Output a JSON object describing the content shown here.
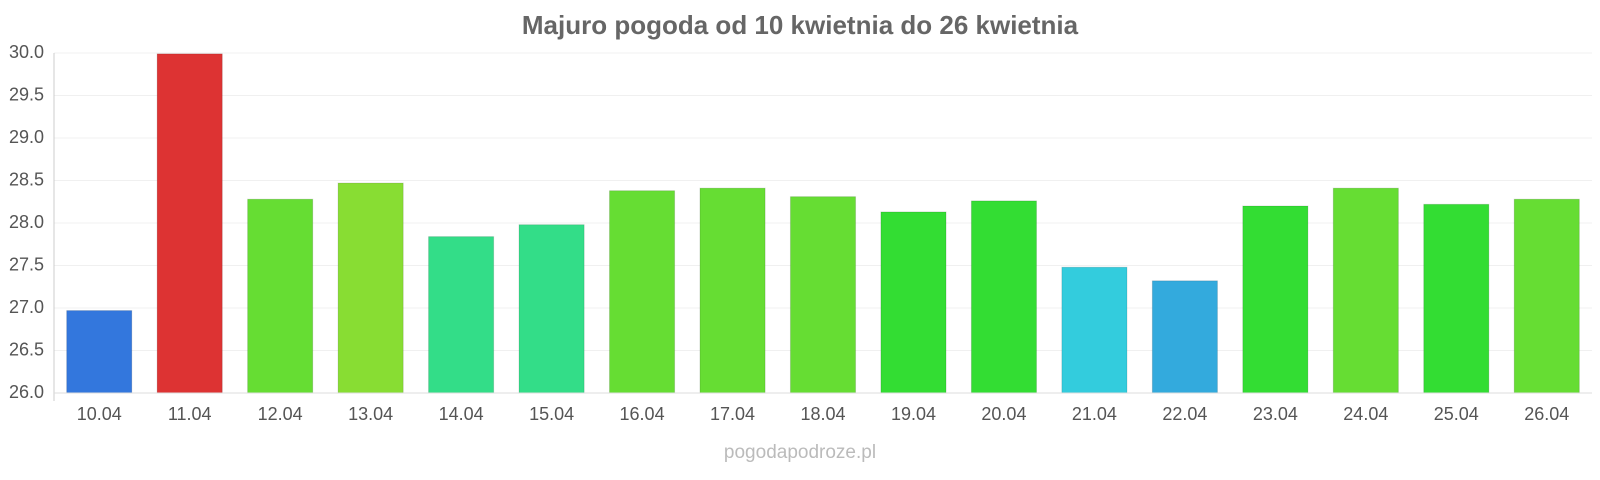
{
  "chart_data": {
    "type": "bar",
    "title": "Majuro pogoda od 10 kwietnia do 26 kwietnia",
    "categories": [
      "10.04",
      "11.04",
      "12.04",
      "13.04",
      "14.04",
      "15.04",
      "16.04",
      "17.04",
      "18.04",
      "19.04",
      "20.04",
      "21.04",
      "22.04",
      "23.04",
      "24.04",
      "25.04",
      "26.04"
    ],
    "values": [
      26.97,
      29.99,
      28.28,
      28.47,
      27.84,
      27.98,
      28.38,
      28.41,
      28.31,
      28.13,
      28.26,
      27.48,
      27.32,
      28.2,
      28.41,
      28.22,
      28.28
    ],
    "colors": [
      "#3377dd",
      "#dd3333",
      "#66dd33",
      "#88dd33",
      "#33dd88",
      "#33dd88",
      "#66dd33",
      "#66dd33",
      "#66dd33",
      "#33dd33",
      "#33dd33",
      "#33ccdd",
      "#33aadd",
      "#33dd33",
      "#66dd33",
      "#33dd33",
      "#66dd33"
    ],
    "ylim": [
      26,
      30
    ],
    "yticks": [
      {
        "value": 26,
        "label": "26.0"
      },
      26.5,
      {
        "value": 27,
        "label": "27.0"
      },
      27.5,
      {
        "value": 28,
        "label": "28.0"
      },
      28.5,
      {
        "value": 29,
        "label": "29.0"
      },
      29.5,
      {
        "value": 30,
        "label": "30.0"
      }
    ],
    "grid": true,
    "credit": "pogodapodroze.pl"
  }
}
